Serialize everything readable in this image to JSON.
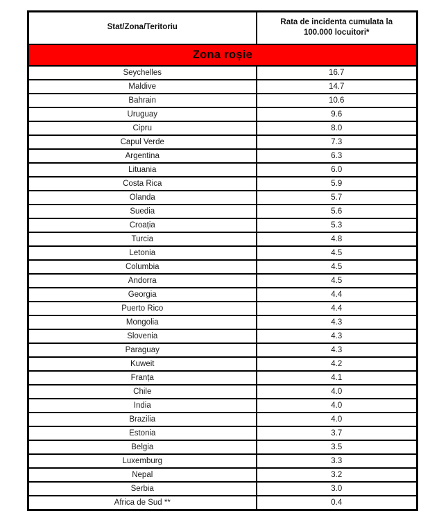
{
  "table": {
    "columns": [
      "Stat/Zona/Teritoriu",
      "Rata de incidenta cumulata la 100.000 locuitori*"
    ],
    "zone_header": {
      "label": "Zona roșie",
      "background": "#fe0000",
      "text_color": "#0a0000"
    },
    "rows": [
      {
        "country": "Seychelles",
        "rate": "16.7"
      },
      {
        "country": "Maldive",
        "rate": "14.7"
      },
      {
        "country": "Bahrain",
        "rate": "10.6"
      },
      {
        "country": "Uruguay",
        "rate": "9.6"
      },
      {
        "country": "Cipru",
        "rate": "8.0"
      },
      {
        "country": "Capul Verde",
        "rate": "7.3"
      },
      {
        "country": "Argentina",
        "rate": "6.3"
      },
      {
        "country": "Lituania",
        "rate": "6.0"
      },
      {
        "country": "Costa Rica",
        "rate": "5.9"
      },
      {
        "country": "Olanda",
        "rate": "5.7"
      },
      {
        "country": "Suedia",
        "rate": "5.6"
      },
      {
        "country": "Croația",
        "rate": "5.3"
      },
      {
        "country": "Turcia",
        "rate": "4.8"
      },
      {
        "country": "Letonia",
        "rate": "4.5"
      },
      {
        "country": "Columbia",
        "rate": "4.5"
      },
      {
        "country": "Andorra",
        "rate": "4.5"
      },
      {
        "country": "Georgia",
        "rate": "4.4"
      },
      {
        "country": "Puerto Rico",
        "rate": "4.4"
      },
      {
        "country": "Mongolia",
        "rate": "4.3"
      },
      {
        "country": "Slovenia",
        "rate": "4.3"
      },
      {
        "country": "Paraguay",
        "rate": "4.3"
      },
      {
        "country": "Kuweit",
        "rate": "4.2"
      },
      {
        "country": "Franța",
        "rate": "4.1"
      },
      {
        "country": "Chile",
        "rate": "4.0"
      },
      {
        "country": "India",
        "rate": "4.0"
      },
      {
        "country": "Brazilia",
        "rate": "4.0"
      },
      {
        "country": "Estonia",
        "rate": "3.7"
      },
      {
        "country": "Belgia",
        "rate": "3.5"
      },
      {
        "country": "Luxemburg",
        "rate": "3.3"
      },
      {
        "country": "Nepal",
        "rate": "3.2"
      },
      {
        "country": "Serbia",
        "rate": "3.0"
      },
      {
        "country": "Africa de Sud **",
        "rate": "0.4"
      }
    ]
  }
}
